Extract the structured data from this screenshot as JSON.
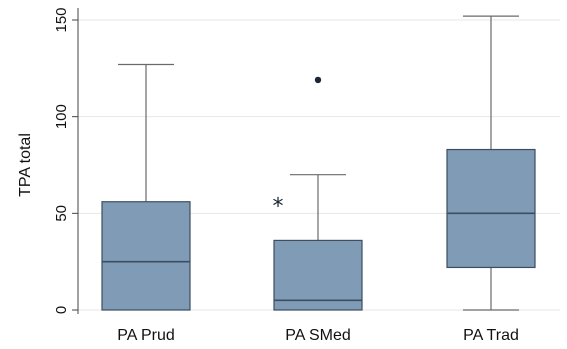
{
  "chart_data": {
    "type": "box",
    "ylabel": "TPA total",
    "ylim": [
      0,
      160
    ],
    "yticks": [
      0,
      50,
      100,
      150
    ],
    "categories": [
      "PA Prud",
      "PA SMed",
      "PA Trad"
    ],
    "boxes": [
      {
        "category": "PA Prud",
        "min": 0,
        "q1": 0,
        "median": 25,
        "q3": 56,
        "max": 127,
        "outliers": []
      },
      {
        "category": "PA SMed",
        "min": 0,
        "q1": 0,
        "median": 5,
        "q3": 36,
        "max": 70,
        "outliers": [
          {
            "value": 54,
            "marker": "star"
          },
          {
            "value": 119,
            "marker": "dot"
          }
        ]
      },
      {
        "category": "PA Trad",
        "min": 0,
        "q1": 22,
        "median": 50,
        "q3": 83,
        "max": 152,
        "outliers": []
      }
    ],
    "grid": true,
    "colors": {
      "box_fill": "#7f9bb6",
      "box_edge": "#3c4e60",
      "median_line": "#3c4e60",
      "whisker": "#6a6a6a",
      "grid": "#e7e7e7"
    }
  }
}
